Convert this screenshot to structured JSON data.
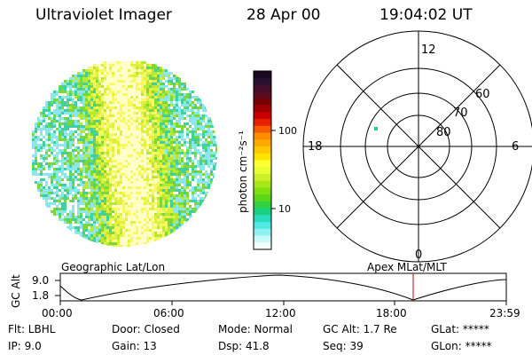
{
  "header": {
    "title": "Ultraviolet Imager",
    "date": "28 Apr 00",
    "time": "19:04:02 UT"
  },
  "colorbar": {
    "label": "photon cm⁻²s⁻¹",
    "ticks": [
      "100",
      "10"
    ],
    "colors": [
      "#1a0820",
      "#2a1030",
      "#40102a",
      "#5a0a1e",
      "#7a0000",
      "#a00000",
      "#c80000",
      "#e82000",
      "#f85a00",
      "#ff8c00",
      "#ffaa00",
      "#ffc800",
      "#ffe400",
      "#ffff33",
      "#e8ff30",
      "#ccf028",
      "#a8e818",
      "#80e010",
      "#58d818",
      "#30d040",
      "#18d080",
      "#28dcc0",
      "#50e8e0",
      "#90f0f0",
      "#c8f8f8",
      "#f4fcfc"
    ]
  },
  "polar_plot": {
    "hour_labels": [
      "12",
      "18",
      "6",
      "0"
    ],
    "lat_labels": [
      "60",
      "70",
      "80"
    ],
    "point_color": "#20d08a"
  },
  "orbit": {
    "left_label": "Geographic Lat/Lon",
    "right_label": "Apex MLat/MLT",
    "y_title": "GC Alt",
    "y_ticks": [
      "9.0",
      "1.8"
    ],
    "x_ticks": [
      "00:00",
      "06:00",
      "12:00",
      "18:00",
      "23:59"
    ],
    "marker_color": "#cc0000"
  },
  "info": {
    "col1": [
      "Flt: LBHL",
      "IP:  9.0"
    ],
    "col2": [
      "Door: Closed",
      "Gain: 13"
    ],
    "col3": [
      "Mode: Normal",
      "Dsp:   41.8"
    ],
    "col4": [
      "GC Alt: 1.7 Re",
      "Seq: 39"
    ],
    "col5": [
      "GLat: *****",
      "GLon: *****"
    ]
  }
}
